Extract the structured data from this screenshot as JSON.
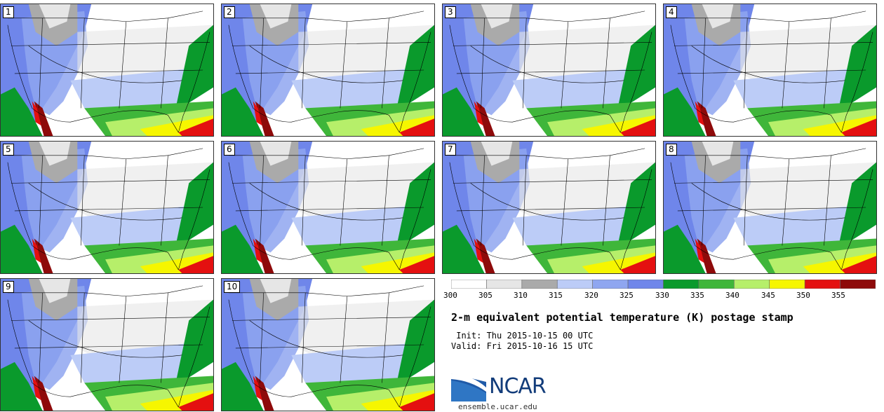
{
  "panels": [
    "1",
    "2",
    "3",
    "4",
    "5",
    "6",
    "7",
    "8",
    "9",
    "10"
  ],
  "colorbar": {
    "ticks": [
      "300",
      "305",
      "310",
      "315",
      "320",
      "325",
      "330",
      "335",
      "340",
      "345",
      "350",
      "355"
    ],
    "colors": [
      "#ffffff",
      "#e6e6e6",
      "#aaaaaa",
      "#bcccf7",
      "#8fa6f0",
      "#6f86ea",
      "#0a9a2c",
      "#3fb63a",
      "#b6ef6a",
      "#f6f600",
      "#e41010",
      "#8e0a0a"
    ]
  },
  "title": "2-m equivalent potential temperature (K) postage stamp",
  "init": " Init: Thu 2015-10-15 00 UTC",
  "valid": "Valid: Fri 2015-10-16 15 UTC",
  "logo": {
    "text": "NCAR",
    "url": "ensemble.ucar.edu"
  }
}
